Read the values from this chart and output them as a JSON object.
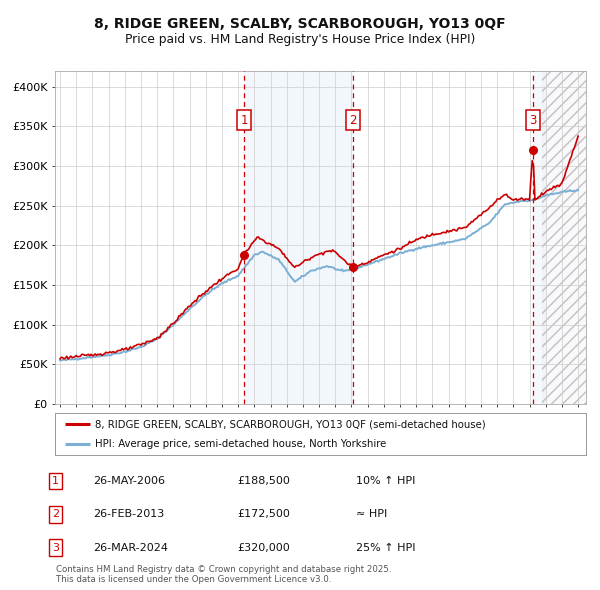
{
  "title_line1": "8, RIDGE GREEN, SCALBY, SCARBOROUGH, YO13 0QF",
  "title_line2": "Price paid vs. HM Land Registry's House Price Index (HPI)",
  "ylim": [
    0,
    420000
  ],
  "yticks": [
    0,
    50000,
    100000,
    150000,
    200000,
    250000,
    300000,
    350000,
    400000
  ],
  "ytick_labels": [
    "£0",
    "£50K",
    "£100K",
    "£150K",
    "£200K",
    "£250K",
    "£300K",
    "£350K",
    "£400K"
  ],
  "year_start": 1995,
  "year_end": 2027,
  "sales": [
    {
      "date_yr": 2006.37,
      "price": 188500,
      "label": "1"
    },
    {
      "date_yr": 2013.08,
      "price": 172500,
      "label": "2"
    },
    {
      "date_yr": 2024.21,
      "price": 320000,
      "label": "3"
    }
  ],
  "hpi_line_color": "#7bafd4",
  "price_line_color": "#cc0000",
  "vline_color": "#cc0000",
  "legend_entry1": "8, RIDGE GREEN, SCALBY, SCARBOROUGH, YO13 0QF (semi-detached house)",
  "legend_entry2": "HPI: Average price, semi-detached house, North Yorkshire",
  "table_rows": [
    {
      "num": "1",
      "date": "26-MAY-2006",
      "price": "£188,500",
      "hpi": "10% ↑ HPI"
    },
    {
      "num": "2",
      "date": "26-FEB-2013",
      "price": "£172,500",
      "hpi": "≈ HPI"
    },
    {
      "num": "3",
      "date": "26-MAR-2024",
      "price": "£320,000",
      "hpi": "25% ↑ HPI"
    }
  ],
  "footnote_line1": "Contains HM Land Registry data © Crown copyright and database right 2025.",
  "footnote_line2": "This data is licensed under the Open Government Licence v3.0.",
  "bg_color": "#ffffff",
  "grid_color": "#cccccc"
}
